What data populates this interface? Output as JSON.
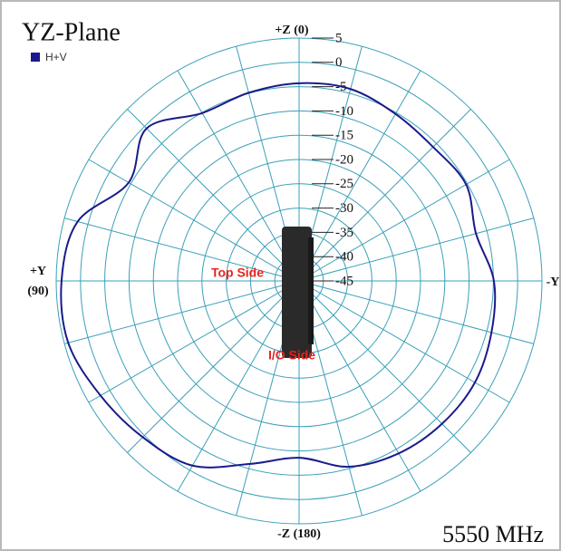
{
  "chart_data": {
    "type": "polar",
    "title": "YZ-Plane",
    "annotation": "5550 MHz",
    "theta": [
      0,
      15,
      30,
      45,
      60,
      75,
      90,
      105,
      120,
      135,
      150,
      165,
      180,
      195,
      210,
      225,
      240,
      255,
      270,
      285,
      300,
      315,
      330,
      345
    ],
    "series": [
      {
        "name": "H+V",
        "color": "#1a1a8c",
        "values": [
          -4.3,
          -4.9,
          -5.1,
          -0.6,
          -4.5,
          2.2,
          3.9,
          4.2,
          2.2,
          0.5,
          -1.1,
          -6,
          -8.6,
          -5.4,
          -4,
          -3.4,
          -3.2,
          -4,
          -4.9,
          -7.3,
          -5.3,
          -6,
          -5.3,
          -4.1
        ]
      }
    ],
    "rlim": [
      -45,
      5
    ],
    "rticks": [
      5,
      0,
      -5,
      -10,
      -15,
      -20,
      -25,
      -30,
      -35,
      -40,
      -45
    ],
    "thetaticks": [
      0,
      15,
      30,
      45,
      60,
      75,
      90,
      105,
      120,
      135,
      150,
      165,
      180,
      195,
      210,
      225,
      240,
      255,
      270,
      285,
      300,
      315,
      330,
      345
    ],
    "direction_labels": [
      {
        "value": 0,
        "label": "+Z (0)"
      },
      {
        "value": 90,
        "label": "+Y",
        "sublabel": "(90)"
      },
      {
        "value": 180,
        "label": "-Z (180)"
      },
      {
        "value": 270,
        "label": "-Y"
      }
    ],
    "device_labels": [
      "Top Side",
      "I/O Side"
    ],
    "grid_color": "#3aa0b8"
  }
}
